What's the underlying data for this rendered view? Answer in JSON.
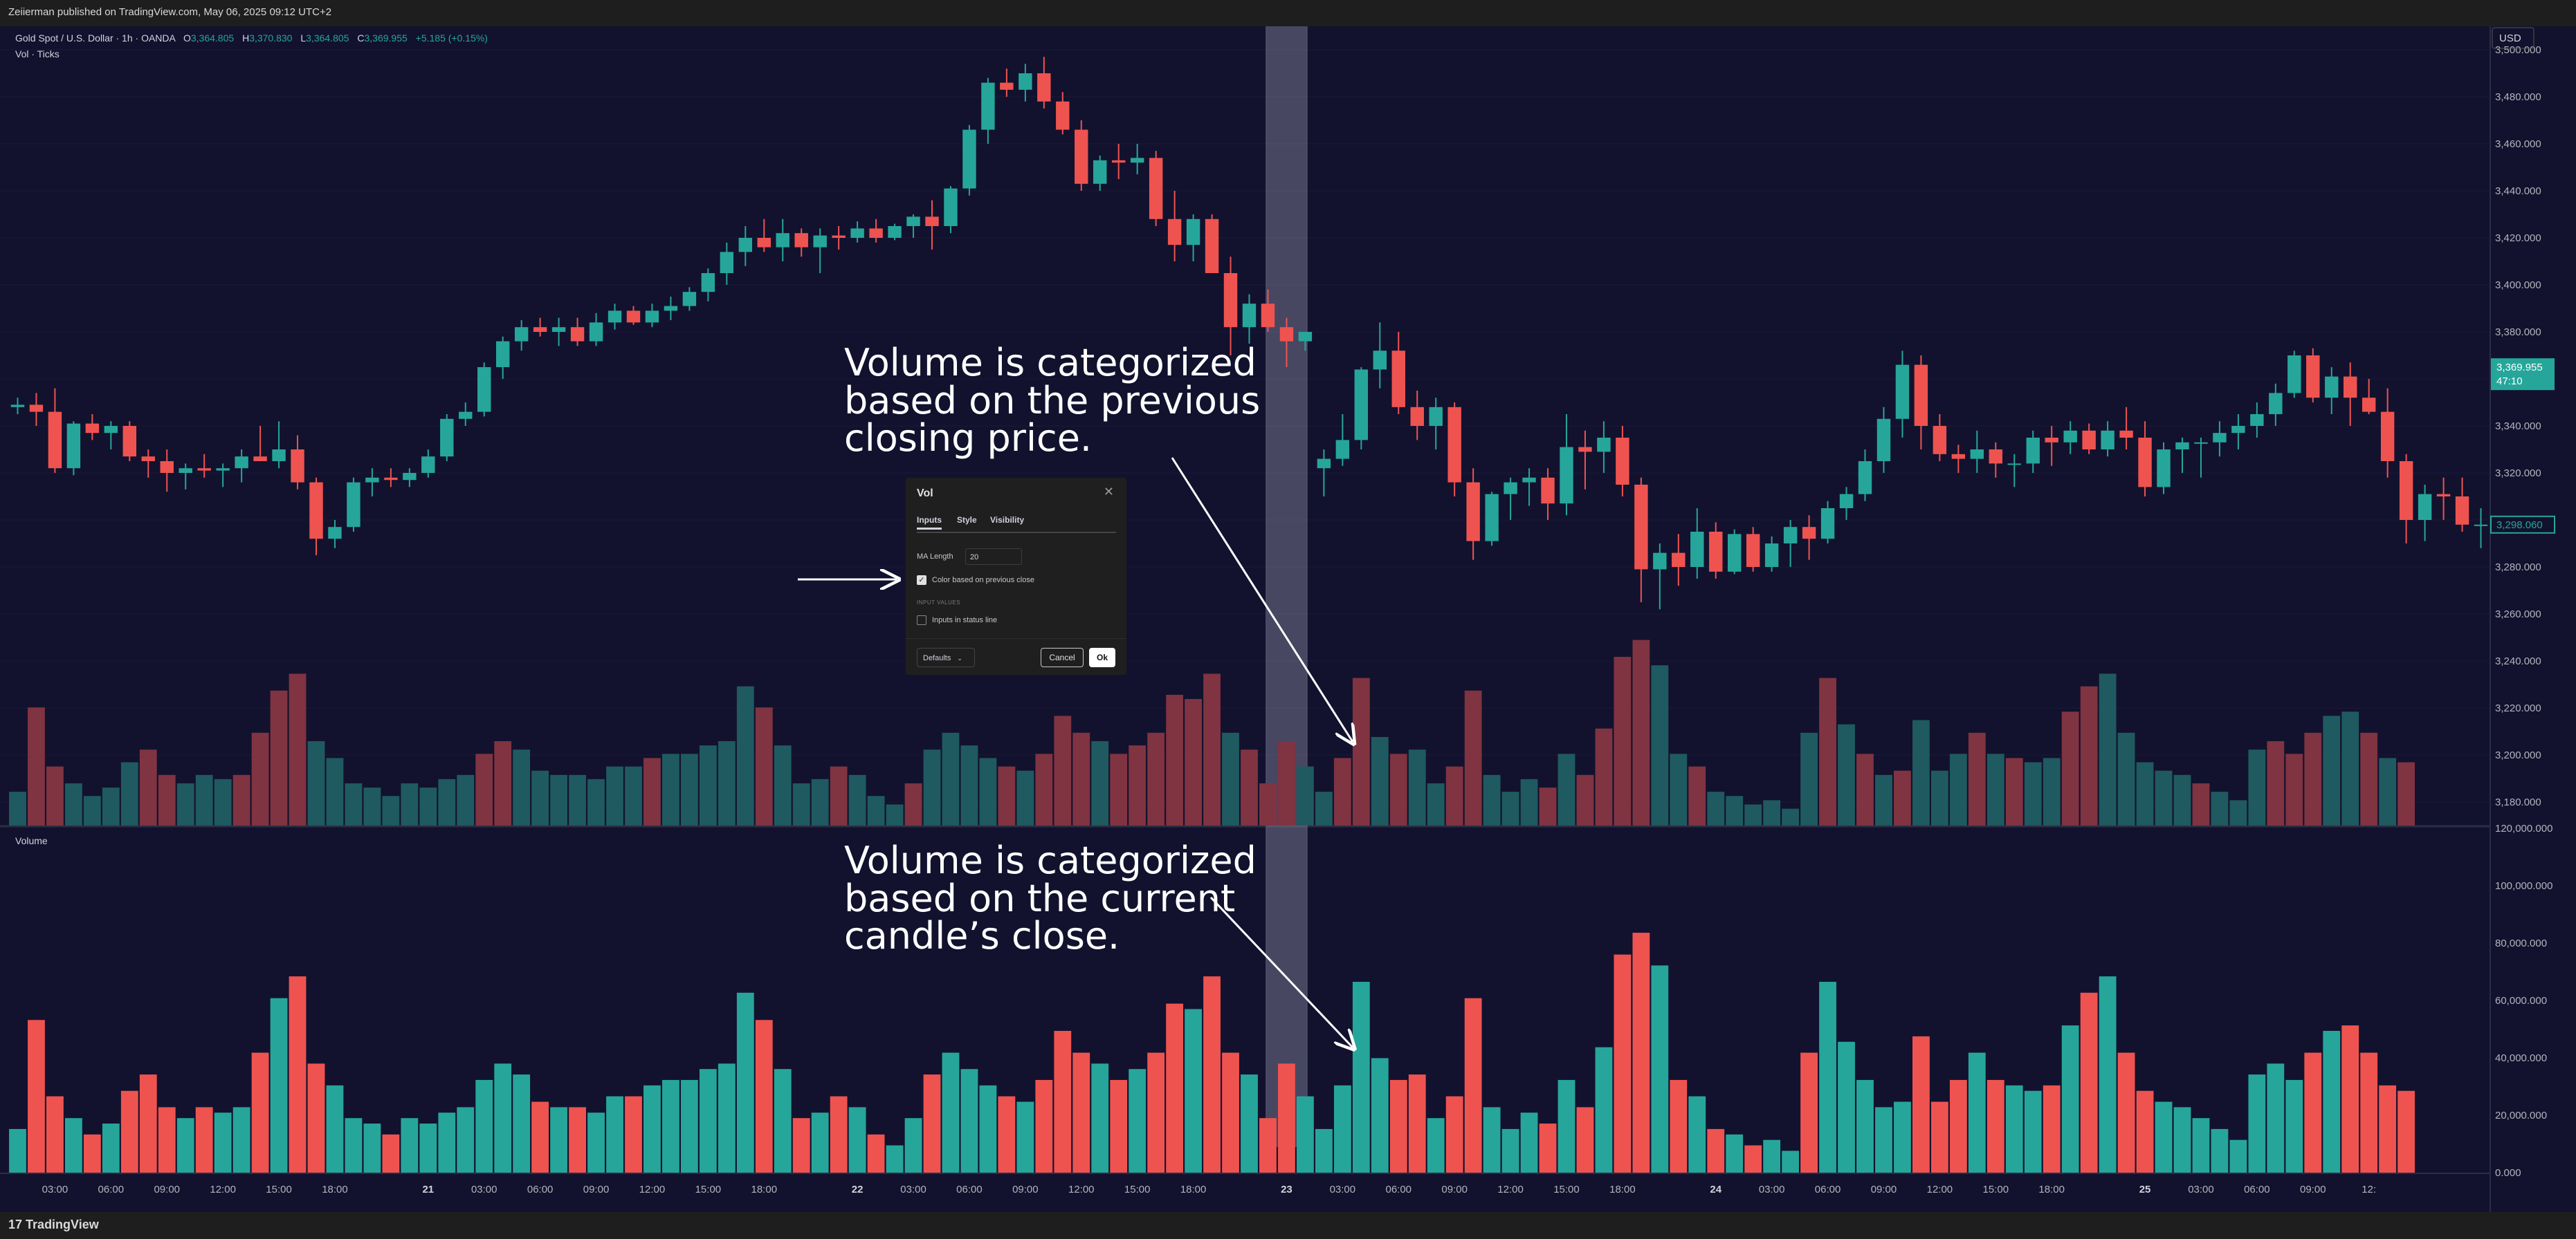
{
  "header": {
    "published": "Zeiierman published on TradingView.com, May 06, 2025 09:12 UTC+2"
  },
  "footer": {
    "logo": "TradingView"
  },
  "legend": {
    "symbol": "Gold Spot / U.S. Dollar · 1h · OANDA",
    "o_label": "O",
    "o_value": "3,364.805",
    "h_label": "H",
    "h_value": "3,370.830",
    "l_label": "L",
    "l_value": "3,364.805",
    "c_label": "C",
    "c_value": "3,369.955",
    "change": "+5.185 (+0.15%)",
    "indicator": "Vol · Ticks",
    "volume_pane_label": "Volume"
  },
  "axis": {
    "currency": "USD",
    "last_price": "3,369.955",
    "countdown": "47:10",
    "marker_price": "3,298.060"
  },
  "annotations": {
    "top": [
      "Volume is categorized",
      "based on the previous",
      "closing price."
    ],
    "bottom": [
      "Volume is categorized",
      "based on the current",
      "candle’s close."
    ]
  },
  "dialog": {
    "title": "Vol",
    "close_icon": "close-icon",
    "tabs": [
      "Inputs",
      "Style",
      "Visibility"
    ],
    "ma_label": "MA Length",
    "ma_value": "20",
    "checkbox1_label": "Color based on previous close",
    "checkbox1_checked": true,
    "section_label": "INPUT VALUES",
    "checkbox2_label": "Inputs in status line",
    "checkbox2_checked": false,
    "defaults": "Defaults",
    "cancel": "Cancel",
    "ok": "Ok"
  },
  "colors": {
    "background": "#12122e",
    "up": "#26a69a",
    "down": "#ef5350",
    "up_dim": "#1f5a60",
    "down_dim": "#803341",
    "text": "#b2b5be",
    "highlight": "#8a8aa0"
  },
  "chart_data": [
    {
      "type": "candlestick",
      "title": "Gold Spot / U.S. Dollar · 1h · OANDA",
      "ylim": [
        3170,
        3510
      ],
      "yticks": [
        "3,180.000",
        "3,200.000",
        "3,220.000",
        "3,240.000",
        "3,260.000",
        "3,280.000",
        "3,300.000",
        "3,320.000",
        "3,340.000",
        "3,360.000",
        "3,380.000",
        "3,400.000",
        "3,420.000",
        "3,440.000",
        "3,460.000",
        "3,480.000",
        "3,500.000"
      ],
      "ytick_values": [
        3180,
        3200,
        3220,
        3240,
        3260,
        3280,
        3300,
        3320,
        3340,
        3360,
        3380,
        3400,
        3420,
        3440,
        3460,
        3480,
        3500
      ],
      "xticks": [
        "03:00",
        "06:00",
        "09:00",
        "12:00",
        "15:00",
        "18:00",
        "21",
        "03:00",
        "06:00",
        "09:00",
        "12:00",
        "15:00",
        "18:00",
        "22",
        "03:00",
        "06:00",
        "09:00",
        "12:00",
        "15:00",
        "18:00",
        "23",
        "03:00",
        "06:00",
        "09:00",
        "12:00",
        "15:00",
        "18:00",
        "24",
        "03:00",
        "06:00",
        "09:00",
        "12:00",
        "15:00",
        "18:00",
        "25",
        "03:00",
        "06:00",
        "09:00",
        "12:"
      ],
      "xtick_index": [
        2,
        5,
        8,
        11,
        14,
        17,
        22,
        25,
        28,
        31,
        34,
        37,
        40,
        45,
        48,
        51,
        54,
        57,
        60,
        63,
        68,
        71,
        74,
        77,
        80,
        83,
        86,
        91,
        94,
        97,
        100,
        103,
        106,
        109,
        114,
        117,
        120,
        123,
        126
      ],
      "xtick_bold": [
        6,
        13,
        20,
        27,
        34
      ],
      "highlight_index": 68,
      "candles": [
        [
          3348,
          3352,
          3345,
          3349
        ],
        [
          3349,
          3354,
          3340,
          3346
        ],
        [
          3346,
          3356,
          3320,
          3322
        ],
        [
          3322,
          3342,
          3319,
          3341
        ],
        [
          3341,
          3345,
          3334,
          3337
        ],
        [
          3337,
          3342,
          3330,
          3340
        ],
        [
          3340,
          3342,
          3325,
          3327
        ],
        [
          3327,
          3330,
          3318,
          3325
        ],
        [
          3325,
          3330,
          3312,
          3320
        ],
        [
          3320,
          3324,
          3313,
          3322
        ],
        [
          3322,
          3328,
          3318,
          3321
        ],
        [
          3321,
          3324,
          3314,
          3322
        ],
        [
          3322,
          3330,
          3316,
          3327
        ],
        [
          3327,
          3340,
          3325,
          3325
        ],
        [
          3325,
          3342,
          3322,
          3330
        ],
        [
          3330,
          3336,
          3313,
          3316
        ],
        [
          3316,
          3318,
          3285,
          3292
        ],
        [
          3292,
          3300,
          3288,
          3297
        ],
        [
          3297,
          3318,
          3295,
          3316
        ],
        [
          3316,
          3322,
          3310,
          3318
        ],
        [
          3318,
          3322,
          3314,
          3317
        ],
        [
          3317,
          3322,
          3314,
          3320
        ],
        [
          3320,
          3330,
          3318,
          3327
        ],
        [
          3327,
          3345,
          3325,
          3343
        ],
        [
          3343,
          3350,
          3340,
          3346
        ],
        [
          3346,
          3367,
          3344,
          3365
        ],
        [
          3365,
          3378,
          3360,
          3376
        ],
        [
          3376,
          3385,
          3372,
          3382
        ],
        [
          3382,
          3386,
          3378,
          3380
        ],
        [
          3380,
          3386,
          3374,
          3382
        ],
        [
          3382,
          3386,
          3374,
          3376
        ],
        [
          3376,
          3388,
          3374,
          3384
        ],
        [
          3384,
          3392,
          3381,
          3389
        ],
        [
          3389,
          3391,
          3383,
          3384
        ],
        [
          3384,
          3392,
          3382,
          3389
        ],
        [
          3389,
          3395,
          3385,
          3391
        ],
        [
          3391,
          3399,
          3389,
          3397
        ],
        [
          3397,
          3407,
          3393,
          3405
        ],
        [
          3405,
          3418,
          3400,
          3414
        ],
        [
          3414,
          3425,
          3408,
          3420
        ],
        [
          3420,
          3428,
          3414,
          3416
        ],
        [
          3416,
          3428,
          3410,
          3422
        ],
        [
          3422,
          3424,
          3412,
          3416
        ],
        [
          3416,
          3424,
          3405,
          3421
        ],
        [
          3421,
          3425,
          3415,
          3420
        ],
        [
          3420,
          3427,
          3418,
          3424
        ],
        [
          3424,
          3428,
          3418,
          3420
        ],
        [
          3420,
          3426,
          3419,
          3425
        ],
        [
          3425,
          3430,
          3420,
          3429
        ],
        [
          3429,
          3436,
          3415,
          3425
        ],
        [
          3425,
          3442,
          3422,
          3441
        ],
        [
          3441,
          3468,
          3438,
          3466
        ],
        [
          3466,
          3488,
          3460,
          3486
        ],
        [
          3486,
          3492,
          3480,
          3483
        ],
        [
          3483,
          3494,
          3478,
          3490
        ],
        [
          3490,
          3497,
          3475,
          3478
        ],
        [
          3478,
          3482,
          3464,
          3466
        ],
        [
          3466,
          3470,
          3440,
          3443
        ],
        [
          3443,
          3455,
          3440,
          3453
        ],
        [
          3453,
          3460,
          3445,
          3452
        ],
        [
          3452,
          3460,
          3447,
          3454
        ],
        [
          3454,
          3457,
          3425,
          3428
        ],
        [
          3428,
          3440,
          3410,
          3417
        ],
        [
          3417,
          3430,
          3410,
          3428
        ],
        [
          3428,
          3430,
          3405,
          3405
        ],
        [
          3405,
          3412,
          3370,
          3382
        ],
        [
          3382,
          3396,
          3375,
          3392
        ],
        [
          3392,
          3398,
          3380,
          3382
        ],
        [
          3382,
          3386,
          3365,
          3376
        ],
        [
          3376,
          3380,
          3372,
          3380
        ],
        [
          3322,
          3330,
          3310,
          3326
        ],
        [
          3326,
          3345,
          3323,
          3334
        ],
        [
          3334,
          3365,
          3330,
          3364
        ],
        [
          3364,
          3384,
          3356,
          3372
        ],
        [
          3372,
          3380,
          3345,
          3348
        ],
        [
          3348,
          3355,
          3334,
          3340
        ],
        [
          3340,
          3352,
          3330,
          3348
        ],
        [
          3348,
          3350,
          3310,
          3316
        ],
        [
          3316,
          3322,
          3283,
          3291
        ],
        [
          3291,
          3312,
          3289,
          3311
        ],
        [
          3311,
          3318,
          3300,
          3316
        ],
        [
          3316,
          3322,
          3306,
          3318
        ],
        [
          3318,
          3322,
          3300,
          3307
        ],
        [
          3307,
          3345,
          3302,
          3331
        ],
        [
          3331,
          3338,
          3313,
          3329
        ],
        [
          3329,
          3342,
          3320,
          3335
        ],
        [
          3335,
          3340,
          3310,
          3315
        ],
        [
          3315,
          3318,
          3265,
          3279
        ],
        [
          3279,
          3290,
          3262,
          3286
        ],
        [
          3286,
          3294,
          3272,
          3280
        ],
        [
          3280,
          3305,
          3275,
          3295
        ],
        [
          3295,
          3299,
          3275,
          3278
        ],
        [
          3278,
          3296,
          3277,
          3294
        ],
        [
          3294,
          3297,
          3278,
          3280
        ],
        [
          3280,
          3293,
          3278,
          3290
        ],
        [
          3290,
          3300,
          3280,
          3297
        ],
        [
          3297,
          3302,
          3283,
          3292
        ],
        [
          3292,
          3308,
          3290,
          3305
        ],
        [
          3305,
          3314,
          3300,
          3311
        ],
        [
          3311,
          3330,
          3308,
          3325
        ],
        [
          3325,
          3348,
          3320,
          3343
        ],
        [
          3343,
          3372,
          3335,
          3366
        ],
        [
          3366,
          3370,
          3330,
          3340
        ],
        [
          3340,
          3345,
          3325,
          3328
        ],
        [
          3328,
          3332,
          3320,
          3326
        ],
        [
          3326,
          3338,
          3320,
          3330
        ],
        [
          3330,
          3333,
          3318,
          3324
        ],
        [
          3324,
          3328,
          3314,
          3324
        ],
        [
          3324,
          3338,
          3320,
          3335
        ],
        [
          3335,
          3340,
          3323,
          3333
        ],
        [
          3333,
          3342,
          3328,
          3338
        ],
        [
          3338,
          3341,
          3328,
          3330
        ],
        [
          3330,
          3342,
          3327,
          3338
        ],
        [
          3338,
          3348,
          3330,
          3335
        ],
        [
          3335,
          3342,
          3310,
          3314
        ],
        [
          3314,
          3333,
          3311,
          3330
        ],
        [
          3330,
          3335,
          3320,
          3333
        ],
        [
          3333,
          3335,
          3318,
          3333
        ],
        [
          3333,
          3342,
          3327,
          3337
        ],
        [
          3337,
          3345,
          3330,
          3340
        ],
        [
          3340,
          3350,
          3335,
          3345
        ],
        [
          3345,
          3358,
          3340,
          3354
        ],
        [
          3354,
          3372,
          3352,
          3370
        ],
        [
          3370,
          3373,
          3350,
          3352
        ],
        [
          3352,
          3365,
          3345,
          3361
        ],
        [
          3361,
          3367,
          3340,
          3352
        ],
        [
          3352,
          3360,
          3345,
          3346
        ],
        [
          3346,
          3356,
          3318,
          3325
        ],
        [
          3325,
          3328,
          3290,
          3300
        ],
        [
          3300,
          3315,
          3291,
          3311
        ],
        [
          3311,
          3318,
          3300,
          3310
        ],
        [
          3310,
          3318,
          3295,
          3298
        ],
        [
          3298,
          3305,
          3288,
          3298
        ]
      ]
    },
    {
      "type": "bar",
      "title": "Vol · Ticks",
      "note": "colored by previous close",
      "values": [
        8,
        28,
        14,
        10,
        7,
        9,
        15,
        18,
        12,
        10,
        12,
        11,
        12,
        22,
        32,
        36,
        20,
        16,
        10,
        9,
        7,
        10,
        9,
        11,
        12,
        17,
        20,
        18,
        13,
        12,
        12,
        11,
        14,
        14,
        16,
        17,
        17,
        19,
        20,
        33,
        28,
        19,
        10,
        11,
        14,
        12,
        7,
        5,
        10,
        18,
        22,
        19,
        16,
        14,
        13,
        17,
        26,
        22,
        20,
        17,
        19,
        22,
        31,
        30,
        36,
        22,
        18,
        10,
        20,
        14,
        8,
        16,
        35,
        21,
        17,
        18,
        10,
        14,
        32,
        12,
        8,
        11,
        9,
        17,
        12,
        23,
        40,
        44,
        38,
        17,
        14,
        8,
        7,
        5,
        6,
        4,
        22,
        35,
        24,
        17,
        12,
        13,
        25,
        13,
        17,
        22,
        17,
        16,
        15,
        16,
        27,
        33,
        36,
        22,
        15,
        13,
        12,
        10,
        8,
        6,
        18,
        20,
        17,
        22,
        26,
        27,
        22,
        16,
        15
      ],
      "colors": [
        0,
        1,
        1,
        0,
        0,
        0,
        0,
        1,
        1,
        0,
        0,
        0,
        1,
        1,
        1,
        1,
        0,
        0,
        0,
        0,
        0,
        0,
        0,
        0,
        0,
        1,
        1,
        0,
        0,
        0,
        0,
        0,
        0,
        0,
        1,
        0,
        0,
        0,
        0,
        0,
        1,
        0,
        0,
        0,
        1,
        0,
        0,
        0,
        1,
        0,
        0,
        0,
        0,
        1,
        0,
        1,
        1,
        1,
        0,
        1,
        1,
        1,
        1,
        1,
        1,
        0,
        1,
        1,
        1,
        0,
        0,
        1,
        1,
        0,
        1,
        0,
        0,
        1,
        1,
        0,
        0,
        0,
        1,
        0,
        1,
        1,
        1,
        1,
        0,
        0,
        1,
        0,
        0,
        0,
        0,
        0,
        0,
        1,
        0,
        1,
        0,
        1,
        0,
        0,
        0,
        1,
        0,
        1,
        0,
        0,
        1,
        1,
        0,
        0,
        0,
        0,
        0,
        1,
        0,
        0,
        0,
        1,
        1,
        1,
        0,
        0,
        1,
        0,
        1
      ]
    },
    {
      "type": "bar",
      "title": "Volume",
      "ylim": [
        0,
        120000000
      ],
      "yticks": [
        "0.000",
        "20,000.000",
        "40,000.000",
        "60,000.000",
        "80,000.000",
        "100,000.000",
        "120,000.000"
      ],
      "ytick_values": [
        0,
        20000000,
        40000000,
        60000000,
        80000000,
        100000000,
        120000000
      ],
      "note": "colored by current candle close"
    }
  ]
}
